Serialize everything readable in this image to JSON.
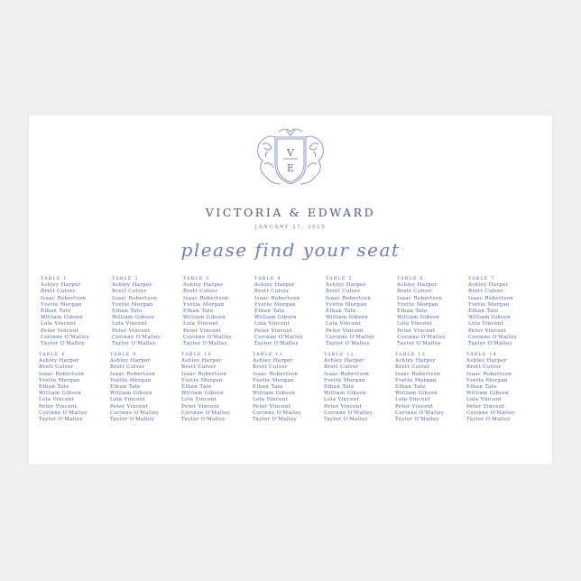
{
  "header": {
    "monogram": [
      "V",
      "E"
    ],
    "couple": "VICTORIA & EDWARD",
    "date": "JANUARY 27, 2025",
    "tagline": "please find your seat"
  },
  "colors": {
    "ink": "#4d5f9c",
    "background": "#efefef",
    "poster": "#ffffff"
  },
  "guests": [
    "Ashley Harper",
    "Brett Culver",
    "Isaac Robertson",
    "Yvette Morgan",
    "Ethan Tate",
    "William Gibson",
    "Lola Vincent",
    "Peter Vincent",
    "Corinne O'Malley",
    "Taylor O'Malley"
  ],
  "tables": [
    {
      "label": "TABLE 1"
    },
    {
      "label": "TABLE 2"
    },
    {
      "label": "TABLE 3"
    },
    {
      "label": "TABLE 4"
    },
    {
      "label": "TABLE 5"
    },
    {
      "label": "TABLE 6"
    },
    {
      "label": "TABLE 7"
    },
    {
      "label": "TABLE 8"
    },
    {
      "label": "TABLE 9"
    },
    {
      "label": "TABLE 10"
    },
    {
      "label": "TABLE 11"
    },
    {
      "label": "TABLE 12"
    },
    {
      "label": "TABLE 13"
    },
    {
      "label": "TABLE 14"
    }
  ]
}
